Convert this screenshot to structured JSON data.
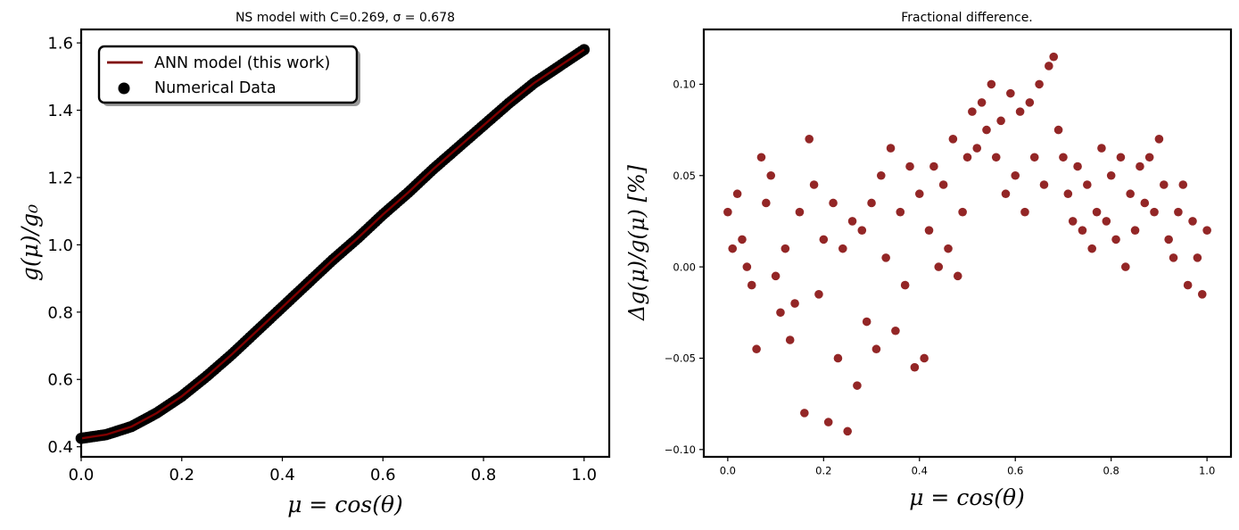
{
  "chart_data": [
    {
      "type": "line",
      "title": "NS model with C=0.269, σ = 0.678",
      "xlabel": "μ = cos(θ)",
      "ylabel": "g(μ)/g₀",
      "xlim": [
        0.0,
        1.05
      ],
      "ylim": [
        0.37,
        1.64
      ],
      "xticks": [
        "0.0",
        "0.2",
        "0.4",
        "0.6",
        "0.8",
        "1.0"
      ],
      "yticks": [
        "0.4",
        "0.6",
        "0.8",
        "1.0",
        "1.2",
        "1.4",
        "1.6"
      ],
      "legend_position": "upper-left",
      "grid": false,
      "series": [
        {
          "name": "ANN model (this work)",
          "kind": "line",
          "color": "#7f0000",
          "x": [
            0.0,
            0.05,
            0.1,
            0.15,
            0.2,
            0.25,
            0.3,
            0.35,
            0.4,
            0.45,
            0.5,
            0.55,
            0.6,
            0.65,
            0.7,
            0.75,
            0.8,
            0.85,
            0.9,
            0.95,
            1.0
          ],
          "y": [
            0.425,
            0.436,
            0.46,
            0.5,
            0.55,
            0.61,
            0.675,
            0.745,
            0.815,
            0.885,
            0.955,
            1.02,
            1.09,
            1.155,
            1.225,
            1.29,
            1.355,
            1.42,
            1.48,
            1.53,
            1.58
          ]
        },
        {
          "name": "Numerical Data",
          "kind": "scatter",
          "color": "#000000",
          "x": [
            0.0,
            0.05,
            0.1,
            0.15,
            0.2,
            0.25,
            0.3,
            0.35,
            0.4,
            0.45,
            0.5,
            0.55,
            0.6,
            0.65,
            0.7,
            0.75,
            0.8,
            0.85,
            0.9,
            0.95,
            1.0
          ],
          "y": [
            0.425,
            0.436,
            0.46,
            0.5,
            0.55,
            0.61,
            0.675,
            0.745,
            0.815,
            0.885,
            0.955,
            1.02,
            1.09,
            1.155,
            1.225,
            1.29,
            1.355,
            1.42,
            1.48,
            1.53,
            1.58
          ]
        }
      ]
    },
    {
      "type": "scatter",
      "title": "Fractional difference.",
      "xlabel": "μ = cos(θ)",
      "ylabel": "Δg(μ)/g(μ)  [%]",
      "xlim": [
        -0.05,
        1.05
      ],
      "ylim": [
        -0.104,
        0.13
      ],
      "xticks": [
        "0.0",
        "0.2",
        "0.4",
        "0.6",
        "0.8",
        "1.0"
      ],
      "yticks": [
        "−0.10",
        "−0.05",
        "0.00",
        "0.05",
        "0.10"
      ],
      "grid": false,
      "series": [
        {
          "color": "#800000",
          "x": [
            0.0,
            0.01,
            0.02,
            0.03,
            0.04,
            0.05,
            0.06,
            0.07,
            0.08,
            0.09,
            0.1,
            0.11,
            0.12,
            0.13,
            0.14,
            0.15,
            0.16,
            0.17,
            0.18,
            0.19,
            0.2,
            0.21,
            0.22,
            0.23,
            0.24,
            0.25,
            0.26,
            0.27,
            0.28,
            0.29,
            0.3,
            0.31,
            0.32,
            0.33,
            0.34,
            0.35,
            0.36,
            0.37,
            0.38,
            0.39,
            0.4,
            0.41,
            0.42,
            0.43,
            0.44,
            0.45,
            0.46,
            0.47,
            0.48,
            0.49,
            0.5,
            0.51,
            0.52,
            0.53,
            0.54,
            0.55,
            0.56,
            0.57,
            0.58,
            0.59,
            0.6,
            0.61,
            0.62,
            0.63,
            0.64,
            0.65,
            0.66,
            0.67,
            0.68,
            0.69,
            0.7,
            0.71,
            0.72,
            0.73,
            0.74,
            0.75,
            0.76,
            0.77,
            0.78,
            0.79,
            0.8,
            0.81,
            0.82,
            0.83,
            0.84,
            0.85,
            0.86,
            0.87,
            0.88,
            0.89,
            0.9,
            0.91,
            0.92,
            0.93,
            0.94,
            0.95,
            0.96,
            0.97,
            0.98,
            0.99,
            1.0
          ],
          "y": [
            0.03,
            0.01,
            0.04,
            0.015,
            0.0,
            -0.01,
            -0.045,
            0.06,
            0.035,
            0.05,
            -0.005,
            -0.025,
            0.01,
            -0.04,
            -0.02,
            0.03,
            -0.08,
            0.07,
            0.045,
            -0.015,
            0.015,
            -0.085,
            0.035,
            -0.05,
            0.01,
            -0.09,
            0.025,
            -0.065,
            0.02,
            -0.03,
            0.035,
            -0.045,
            0.05,
            0.005,
            0.065,
            -0.035,
            0.03,
            -0.01,
            0.055,
            -0.055,
            0.04,
            -0.05,
            0.02,
            0.055,
            0.0,
            0.045,
            0.01,
            0.07,
            -0.005,
            0.03,
            0.06,
            0.085,
            0.065,
            0.09,
            0.075,
            0.1,
            0.06,
            0.08,
            0.04,
            0.095,
            0.05,
            0.085,
            0.03,
            0.09,
            0.06,
            0.1,
            0.045,
            0.11,
            0.115,
            0.075,
            0.06,
            0.04,
            0.025,
            0.055,
            0.02,
            0.045,
            0.01,
            0.03,
            0.065,
            0.025,
            0.05,
            0.015,
            0.06,
            0.0,
            0.04,
            0.02,
            0.055,
            0.035,
            0.06,
            0.03,
            0.07,
            0.045,
            0.015,
            0.005,
            0.03,
            0.045,
            -0.01,
            0.025,
            0.005,
            -0.015,
            0.02
          ]
        }
      ]
    }
  ]
}
